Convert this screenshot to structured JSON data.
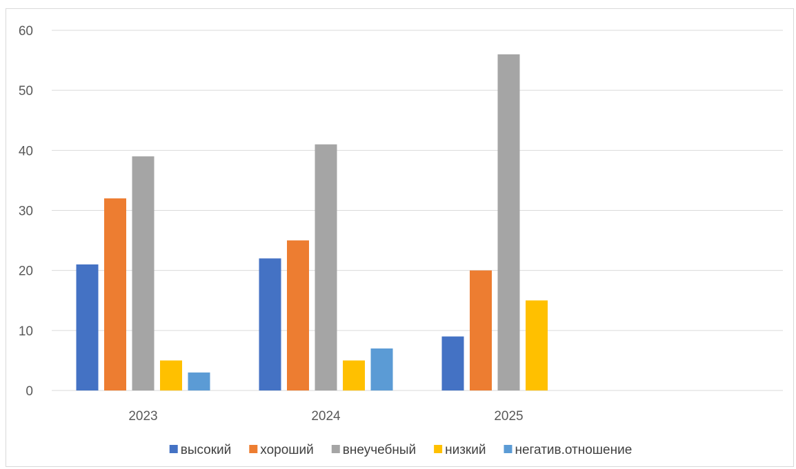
{
  "chart_data": {
    "type": "bar",
    "title": "",
    "xlabel": "",
    "ylabel": "",
    "ylim": [
      0,
      60
    ],
    "yticks": [
      0,
      10,
      20,
      30,
      40,
      50,
      60
    ],
    "grid": true,
    "legend_position": "bottom",
    "slots": 4,
    "categories": [
      "2023",
      "2024",
      "2025"
    ],
    "series": [
      {
        "name": "высокий",
        "color": "#4472C4",
        "values": [
          21,
          22,
          9
        ]
      },
      {
        "name": "хороший",
        "color": "#ED7D31",
        "values": [
          32,
          25,
          20
        ]
      },
      {
        "name": "внеучебный",
        "color": "#A5A5A5",
        "values": [
          39,
          41,
          56
        ]
      },
      {
        "name": "низкий",
        "color": "#FFC000",
        "values": [
          5,
          5,
          15
        ]
      },
      {
        "name": "негатив.отношение",
        "color": "#5B9BD5",
        "values": [
          3,
          7,
          null
        ]
      }
    ]
  }
}
